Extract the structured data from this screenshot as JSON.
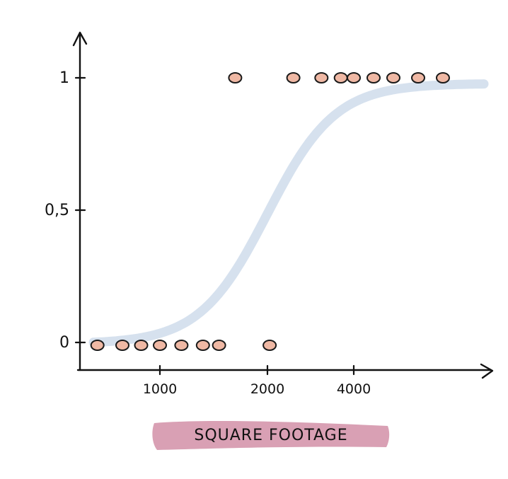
{
  "chart_data": {
    "type": "scatter",
    "xlabel": "SQUARE FOOTAGE",
    "ylabel": "",
    "x_ticks": [
      "1000",
      "2000",
      "4000"
    ],
    "y_ticks": [
      "0",
      "0,5",
      "1"
    ],
    "ylim": [
      0,
      1
    ],
    "grid": false,
    "colors": {
      "points": "#efb8a4",
      "curve": "#d6e1ee",
      "xlabel_highlight": "#d9a0b4",
      "axis": "#111111"
    },
    "points_y0": [
      500,
      700,
      850,
      1000,
      1200,
      1400,
      1550,
      2050
    ],
    "points_y1": [
      1700,
      2600,
      3250,
      3700,
      4000,
      4200,
      4400,
      4650,
      4900
    ],
    "curve": {
      "shape": "sigmoid",
      "midpoint_x": 2250,
      "y": [
        0,
        1
      ]
    }
  }
}
